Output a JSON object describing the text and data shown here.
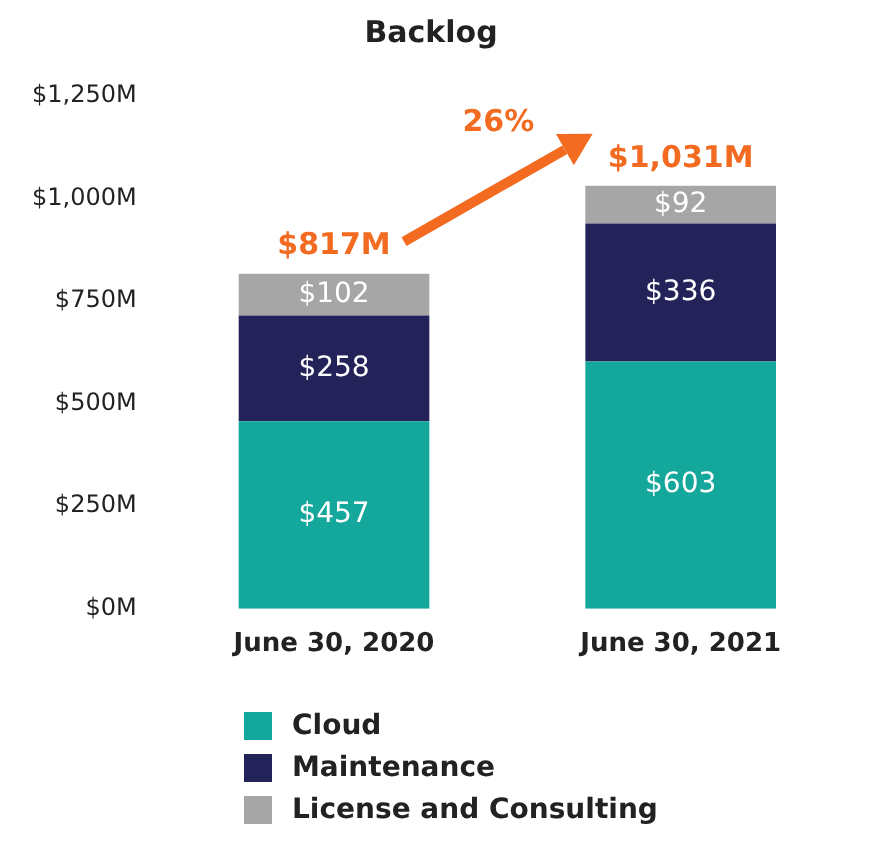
{
  "chart_data": {
    "type": "bar",
    "title": "Backlog",
    "stacked": true,
    "categories": [
      "June 30, 2020",
      "June 30, 2021"
    ],
    "series": [
      {
        "name": "Cloud",
        "color": "#14a89c",
        "values": [
          457,
          603
        ],
        "value_labels": [
          "$457",
          "$603"
        ]
      },
      {
        "name": "Maintenance",
        "color": "#23235a",
        "values": [
          258,
          336
        ],
        "value_labels": [
          "$258",
          "$336"
        ]
      },
      {
        "name": "License and Consulting",
        "color": "#a6a6a6",
        "values": [
          102,
          92
        ],
        "value_labels": [
          "$102",
          "$92"
        ]
      }
    ],
    "totals": [
      "$817M",
      "$1,031M"
    ],
    "annotations": [
      "26%"
    ],
    "ylim": [
      0,
      1250
    ],
    "yticks": [
      {
        "value": 0,
        "label": "$0M"
      },
      {
        "value": 250,
        "label": "$250M"
      },
      {
        "value": 500,
        "label": "$500M"
      },
      {
        "value": 750,
        "label": "$750M"
      },
      {
        "value": 1000,
        "label": "$1,000M"
      },
      {
        "value": 1250,
        "label": "$1,250M"
      }
    ],
    "grid": false,
    "legend": "bottom"
  }
}
